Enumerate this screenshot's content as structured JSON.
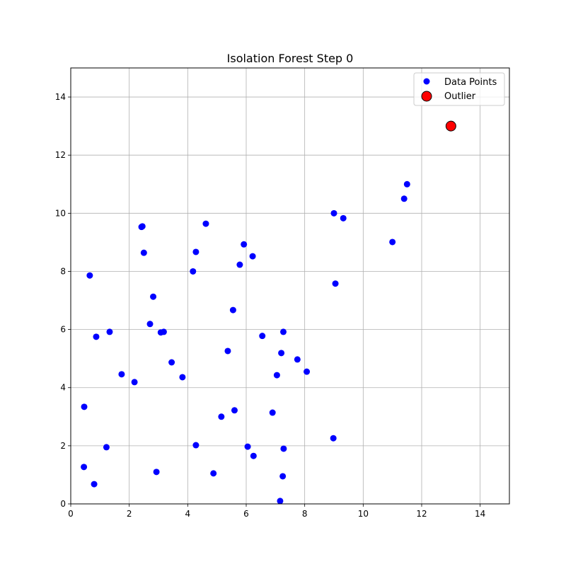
{
  "chart_data": {
    "type": "scatter",
    "title": "Isolation Forest Step 0",
    "xlabel": "",
    "ylabel": "",
    "xlim": [
      0,
      15
    ],
    "ylim": [
      0,
      15
    ],
    "xticks": [
      0,
      2,
      4,
      6,
      8,
      10,
      12,
      14
    ],
    "yticks": [
      0,
      2,
      4,
      6,
      8,
      10,
      12,
      14
    ],
    "grid": true,
    "legend": {
      "placement": "top-right",
      "entries": [
        {
          "label": "Data Points",
          "color": "#0000ff"
        },
        {
          "label": "Outlier",
          "color": "#ff0000"
        }
      ]
    },
    "series": [
      {
        "name": "Data Points",
        "color": "#0000ff",
        "points": [
          [
            0.65,
            7.86
          ],
          [
            0.87,
            5.75
          ],
          [
            1.33,
            5.92
          ],
          [
            1.74,
            4.46
          ],
          [
            2.18,
            4.19
          ],
          [
            0.46,
            3.34
          ],
          [
            1.22,
            1.95
          ],
          [
            0.45,
            1.27
          ],
          [
            0.8,
            0.68
          ],
          [
            2.93,
            1.1
          ],
          [
            2.42,
            9.53
          ],
          [
            2.45,
            9.55
          ],
          [
            2.5,
            8.64
          ],
          [
            2.82,
            7.13
          ],
          [
            2.71,
            6.19
          ],
          [
            3.08,
            5.9
          ],
          [
            3.18,
            5.92
          ],
          [
            3.45,
            4.87
          ],
          [
            3.82,
            4.36
          ],
          [
            4.18,
            8.0
          ],
          [
            4.28,
            8.67
          ],
          [
            4.62,
            9.64
          ],
          [
            4.28,
            2.02
          ],
          [
            4.88,
            1.05
          ],
          [
            5.15,
            3.0
          ],
          [
            5.37,
            5.26
          ],
          [
            5.55,
            6.67
          ],
          [
            5.6,
            3.22
          ],
          [
            5.78,
            8.23
          ],
          [
            5.92,
            8.93
          ],
          [
            6.22,
            8.52
          ],
          [
            6.05,
            1.97
          ],
          [
            6.25,
            1.65
          ],
          [
            6.55,
            5.78
          ],
          [
            6.9,
            3.14
          ],
          [
            7.05,
            4.43
          ],
          [
            7.2,
            5.19
          ],
          [
            7.27,
            5.92
          ],
          [
            7.28,
            1.9
          ],
          [
            7.25,
            0.95
          ],
          [
            7.16,
            0.1
          ],
          [
            7.75,
            4.97
          ],
          [
            8.07,
            4.55
          ],
          [
            8.98,
            2.26
          ],
          [
            9.0,
            10.0
          ],
          [
            9.05,
            7.58
          ],
          [
            9.32,
            9.83
          ],
          [
            11.0,
            9.01
          ],
          [
            11.4,
            10.5
          ],
          [
            11.5,
            11.0
          ]
        ]
      },
      {
        "name": "Outlier",
        "color": "#ff0000",
        "points": [
          [
            13.0,
            13.0
          ]
        ]
      }
    ]
  }
}
